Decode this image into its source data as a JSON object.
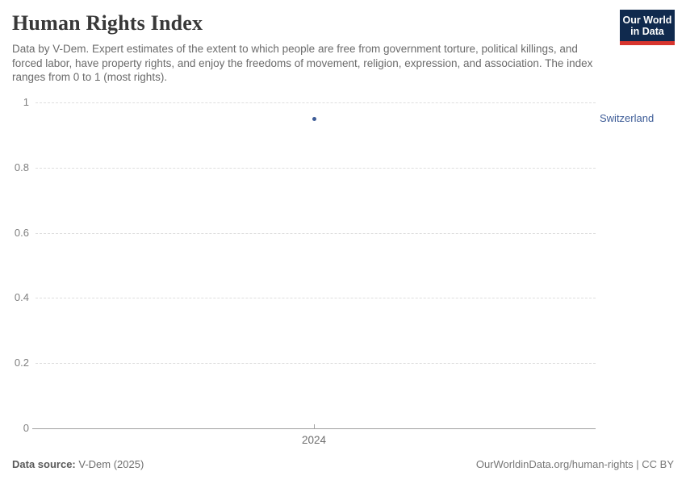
{
  "header": {
    "title": "Human Rights Index",
    "subtitle": "Data by V-Dem. Expert estimates of the extent to which people are free from government torture, political killings, and forced labor, have property rights, and enjoy the freedoms of movement, religion, expression, and association. The index ranges from 0 to 1 (most rights).",
    "logo": {
      "line1": "Our World",
      "line2": "in Data"
    }
  },
  "chart_data": {
    "type": "scatter",
    "title": "Human Rights Index",
    "x": [
      2024
    ],
    "series": [
      {
        "name": "Switzerland",
        "values": [
          0.95
        ]
      }
    ],
    "xlabel": "",
    "ylabel": "",
    "ylim": [
      0,
      1
    ],
    "yticks": [
      0,
      0.2,
      0.4,
      0.6,
      0.8,
      1
    ],
    "xticks": [
      2024
    ],
    "grid": true,
    "legend_position": "right-of-point",
    "colors": {
      "entity": "#3d5c97",
      "grid": "#dedede",
      "axis": "#a0a0a0",
      "tick_label": "#7f7f7f",
      "logo_bg": "#102a4e",
      "logo_accent": "#d8352e"
    }
  },
  "footer": {
    "source_label": "Data source:",
    "source_value": "V-Dem (2025)",
    "credit": "OurWorldinData.org/human-rights | CC BY"
  }
}
